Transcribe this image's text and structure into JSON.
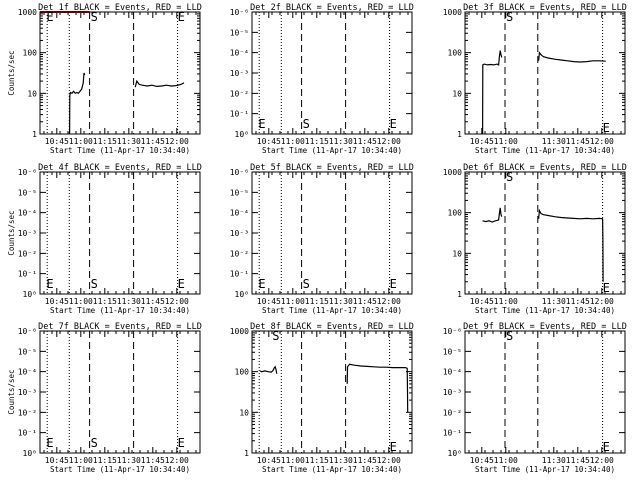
{
  "chart_data": [
    {
      "type": "line",
      "title": "Det 1f BLACK = Events, RED = LLD",
      "xlabel": "Start Time (11-Apr-17 10:34:40)",
      "ylabel": "Counts/sec",
      "x_tick_labels": [
        "10:45",
        "11:00",
        "11:15",
        "11:30",
        "11:45",
        "12:00"
      ],
      "x_ticks_min": [
        10.5,
        25.5,
        40.5,
        55.5,
        70.5,
        85.5
      ],
      "xlim_min": [
        0,
        100
      ],
      "y_tick_labels": [
        "1",
        "10",
        "100",
        "1000"
      ],
      "ylim_decades": [
        0,
        3
      ],
      "markers": [
        {
          "label": "E",
          "x": 4
        },
        {
          "label": "S",
          "x": 31
        },
        {
          "label": "E",
          "x": 86
        }
      ],
      "dotted_lines_min": [
        4.5,
        18.3,
        86
      ],
      "dashed_lines_min": [
        31,
        58.5
      ],
      "series": [
        {
          "color": "#000000",
          "points": [
            [
              18.5,
              0
            ],
            [
              18.6,
              0.95
            ],
            [
              19,
              1.02
            ],
            [
              20,
              1.0
            ],
            [
              21,
              1.05
            ],
            [
              22,
              1.0
            ],
            [
              23,
              1.02
            ],
            [
              24,
              1.0
            ],
            [
              25,
              1.05
            ],
            [
              26,
              1.1
            ],
            [
              27,
              1.25
            ],
            [
              27.5,
              1.5
            ],
            [
              28,
              1.45
            ]
          ]
        },
        {
          "color": "#000000",
          "points": [
            [
              59.5,
              1.15
            ],
            [
              60.5,
              1.3
            ],
            [
              62,
              1.22
            ],
            [
              64,
              1.2
            ],
            [
              67,
              1.18
            ],
            [
              70,
              1.2
            ],
            [
              73,
              1.17
            ],
            [
              76,
              1.18
            ],
            [
              79,
              1.2
            ],
            [
              82,
              1.18
            ],
            [
              85,
              1.19
            ],
            [
              88,
              1.22
            ],
            [
              90,
              1.26
            ]
          ]
        },
        {
          "color": "#cc0000",
          "points": [
            [
              0,
              3
            ],
            [
              4,
              3
            ],
            [
              31,
              3
            ]
          ]
        }
      ]
    },
    {
      "type": "line",
      "title": "Det 2f BLACK = Events, RED = LLD",
      "xlabel": "Start Time (11-Apr-17 10:34:40)",
      "ylabel": "",
      "x_tick_labels": [
        "10:45",
        "11:00",
        "11:15",
        "11:30",
        "11:45",
        "12:00"
      ],
      "x_ticks_min": [
        10.5,
        25.5,
        40.5,
        55.5,
        70.5,
        85.5
      ],
      "xlim_min": [
        0,
        100
      ],
      "y_tick_labels": [
        "10⁰",
        "10⁻¹",
        "10⁻²",
        "10⁻³",
        "10⁻⁴",
        "10⁻⁵",
        "10⁻⁶"
      ],
      "y_ticks_frac": [
        0,
        0.167,
        0.333,
        0.5,
        0.667,
        0.833,
        1
      ],
      "markers": [
        {
          "label": "E",
          "x": 4
        },
        {
          "label": "S",
          "x": 31
        },
        {
          "label": "E",
          "x": 86
        }
      ],
      "dotted_lines_min": [
        4.5,
        18.3,
        86
      ],
      "dashed_lines_min": [
        31,
        58.5
      ],
      "series": []
    },
    {
      "type": "line",
      "title": "Det 3f BLACK = Events, RED = LLD",
      "xlabel": "Start Time (11-Apr-17 10:34:40)",
      "ylabel": "",
      "x_tick_labels": [
        "10:45",
        "11:00",
        "11:30",
        "11:45",
        "12:00"
      ],
      "x_ticks_min": [
        10.5,
        25.5,
        55.5,
        70.5,
        85.5
      ],
      "xlim_min": [
        0,
        100
      ],
      "y_tick_labels": [
        "1",
        "10",
        "100",
        "1000"
      ],
      "ylim_decades": [
        0,
        3
      ],
      "markers": [
        {
          "label": "S",
          "x": 25
        },
        {
          "label": "E",
          "x": 86
        }
      ],
      "dotted_lines_min": [
        86
      ],
      "dashed_lines_min": [
        25,
        45.5
      ],
      "series": [
        {
          "color": "#000000",
          "points": [
            [
              11,
              0
            ],
            [
              11.1,
              1.7
            ],
            [
              12,
              1.72
            ],
            [
              14,
              1.7
            ],
            [
              16,
              1.71
            ],
            [
              18,
              1.7
            ],
            [
              20,
              1.72
            ],
            [
              21,
              1.7
            ],
            [
              21.5,
              1.9
            ],
            [
              22,
              2.05
            ],
            [
              22.5,
              1.95
            ],
            [
              23,
              1.88
            ]
          ]
        },
        {
          "color": "#000000",
          "points": [
            [
              46,
              1.8
            ],
            [
              46.5,
              2.0
            ],
            [
              47.5,
              1.95
            ],
            [
              49,
              1.9
            ],
            [
              52,
              1.87
            ],
            [
              56,
              1.84
            ],
            [
              60,
              1.82
            ],
            [
              64,
              1.8
            ],
            [
              68,
              1.78
            ],
            [
              72,
              1.77
            ],
            [
              76,
              1.78
            ],
            [
              80,
              1.8
            ],
            [
              84,
              1.8
            ],
            [
              88,
              1.79
            ]
          ]
        }
      ]
    },
    {
      "type": "line",
      "title": "Det 4f BLACK = Events, RED = LLD",
      "xlabel": "Start Time (11-Apr-17 10:34:40)",
      "ylabel": "Counts/sec",
      "x_tick_labels": [
        "10:45",
        "11:00",
        "11:15",
        "11:30",
        "11:45",
        "12:00"
      ],
      "x_ticks_min": [
        10.5,
        25.5,
        40.5,
        55.5,
        70.5,
        85.5
      ],
      "xlim_min": [
        0,
        100
      ],
      "y_tick_labels": [
        "10⁰",
        "10⁻¹",
        "10⁻²",
        "10⁻³",
        "10⁻⁴",
        "10⁻⁵",
        "10⁻⁶"
      ],
      "y_ticks_frac": [
        0,
        0.167,
        0.333,
        0.5,
        0.667,
        0.833,
        1
      ],
      "markers": [
        {
          "label": "E",
          "x": 4
        },
        {
          "label": "S",
          "x": 31
        },
        {
          "label": "E",
          "x": 86
        }
      ],
      "dotted_lines_min": [
        4.5,
        18.3,
        86
      ],
      "dashed_lines_min": [
        31,
        58.5
      ],
      "series": []
    },
    {
      "type": "line",
      "title": "Det 5f BLACK = Events, RED = LLD",
      "xlabel": "Start Time (11-Apr-17 10:34:40)",
      "ylabel": "",
      "x_tick_labels": [
        "10:45",
        "11:00",
        "11:15",
        "11:30",
        "11:45",
        "12:00"
      ],
      "x_ticks_min": [
        10.5,
        25.5,
        40.5,
        55.5,
        70.5,
        85.5
      ],
      "xlim_min": [
        0,
        100
      ],
      "y_tick_labels": [
        "10⁰",
        "10⁻¹",
        "10⁻²",
        "10⁻³",
        "10⁻⁴",
        "10⁻⁵",
        "10⁻⁶"
      ],
      "y_ticks_frac": [
        0,
        0.167,
        0.333,
        0.5,
        0.667,
        0.833,
        1
      ],
      "markers": [
        {
          "label": "E",
          "x": 4
        },
        {
          "label": "S",
          "x": 31
        },
        {
          "label": "E",
          "x": 86
        }
      ],
      "dotted_lines_min": [
        4.5,
        18.3,
        86
      ],
      "dashed_lines_min": [
        31,
        58.5
      ],
      "series": []
    },
    {
      "type": "line",
      "title": "Det 6f BLACK = Events, RED = LLD",
      "xlabel": "Start Time (11-Apr-17 10:34:40)",
      "ylabel": "",
      "x_tick_labels": [
        "10:45",
        "11:00",
        "11:30",
        "11:45",
        "12:00"
      ],
      "x_ticks_min": [
        10.5,
        25.5,
        55.5,
        70.5,
        85.5
      ],
      "xlim_min": [
        0,
        100
      ],
      "y_tick_labels": [
        "1",
        "10",
        "100",
        "1000"
      ],
      "ylim_decades": [
        0,
        3
      ],
      "markers": [
        {
          "label": "S",
          "x": 25
        },
        {
          "label": "E",
          "x": 86
        }
      ],
      "dotted_lines_min": [
        86
      ],
      "dashed_lines_min": [
        25,
        45.5
      ],
      "series": [
        {
          "color": "#000000",
          "points": [
            [
              11,
              1.8
            ],
            [
              13,
              1.78
            ],
            [
              15,
              1.8
            ],
            [
              17,
              1.77
            ],
            [
              19,
              1.8
            ],
            [
              21,
              1.82
            ],
            [
              21.5,
              1.98
            ],
            [
              22,
              2.12
            ],
            [
              22.5,
              1.95
            ],
            [
              23,
              1.9
            ]
          ]
        },
        {
          "color": "#000000",
          "points": [
            [
              46,
              1.85
            ],
            [
              46.5,
              2.05
            ],
            [
              47.5,
              1.98
            ],
            [
              49,
              1.95
            ],
            [
              52,
              1.93
            ],
            [
              56,
              1.9
            ],
            [
              60,
              1.88
            ],
            [
              64,
              1.87
            ],
            [
              68,
              1.86
            ],
            [
              72,
              1.85
            ],
            [
              76,
              1.86
            ],
            [
              80,
              1.85
            ],
            [
              84,
              1.86
            ],
            [
              86,
              1.85
            ],
            [
              86.2,
              1.3
            ],
            [
              86.3,
              0.3
            ]
          ]
        }
      ]
    },
    {
      "type": "line",
      "title": "Det 7f BLACK = Events, RED = LLD",
      "xlabel": "Start Time (11-Apr-17 10:34:40)",
      "ylabel": "Counts/sec",
      "x_tick_labels": [
        "10:45",
        "11:00",
        "11:15",
        "11:30",
        "11:45",
        "12:00"
      ],
      "x_ticks_min": [
        10.5,
        25.5,
        40.5,
        55.5,
        70.5,
        85.5
      ],
      "xlim_min": [
        0,
        100
      ],
      "y_tick_labels": [
        "10⁰",
        "10⁻¹",
        "10⁻²",
        "10⁻³",
        "10⁻⁴",
        "10⁻⁵",
        "10⁻⁶"
      ],
      "y_ticks_frac": [
        0,
        0.167,
        0.333,
        0.5,
        0.667,
        0.833,
        1
      ],
      "markers": [
        {
          "label": "E",
          "x": 4
        },
        {
          "label": "S",
          "x": 31
        },
        {
          "label": "E",
          "x": 86
        }
      ],
      "dotted_lines_min": [
        4.5,
        18.3,
        86
      ],
      "dashed_lines_min": [
        31,
        58.5
      ],
      "series": []
    },
    {
      "type": "line",
      "title": "Det 8f BLACK = Events, RED = LLD",
      "xlabel": "Start Time (11-Apr-17 10:34:40)",
      "ylabel": "",
      "x_tick_labels": [
        "10:45",
        "11:00",
        "11:15",
        "11:30",
        "11:45",
        "12:00"
      ],
      "x_ticks_min": [
        10.5,
        25.5,
        40.5,
        55.5,
        70.5,
        85.5
      ],
      "xlim_min": [
        0,
        100
      ],
      "y_tick_labels": [
        "1",
        "10",
        "100",
        "1000"
      ],
      "ylim_decades": [
        0,
        3
      ],
      "markers": [
        {
          "label": "S",
          "x": 12
        },
        {
          "label": "E",
          "x": 86
        }
      ],
      "dotted_lines_min": [
        4.5,
        18.3,
        86
      ],
      "dashed_lines_min": [
        31,
        58.5
      ],
      "series": [
        {
          "color": "#000000",
          "points": [
            [
              5,
              2.02
            ],
            [
              6,
              2.0
            ],
            [
              8,
              2.02
            ],
            [
              10,
              2.0
            ],
            [
              12,
              1.99
            ],
            [
              13,
              2.02
            ],
            [
              14,
              2.1
            ],
            [
              14.5,
              2.12
            ],
            [
              15,
              2.05
            ],
            [
              15.5,
              1.95
            ]
          ]
        },
        {
          "color": "#000000",
          "points": [
            [
              59.5,
              1.7
            ],
            [
              59.7,
              2.12
            ],
            [
              61,
              2.18
            ],
            [
              64,
              2.16
            ],
            [
              68,
              2.14
            ],
            [
              72,
              2.13
            ],
            [
              76,
              2.12
            ],
            [
              80,
              2.11
            ],
            [
              84,
              2.11
            ],
            [
              88,
              2.1
            ],
            [
              92,
              2.1
            ],
            [
              96,
              2.1
            ],
            [
              97,
              2.08
            ],
            [
              97.2,
              1.5
            ],
            [
              97.3,
              1.0
            ]
          ]
        }
      ]
    },
    {
      "type": "line",
      "title": "Det 9f BLACK = Events, RED = LLD",
      "xlabel": "Start Time (11-Apr-17 10:34:40)",
      "ylabel": "",
      "x_tick_labels": [
        "10:45",
        "11:00",
        "11:30",
        "11:45",
        "12:00"
      ],
      "x_ticks_min": [
        10.5,
        25.5,
        55.5,
        70.5,
        85.5
      ],
      "xlim_min": [
        0,
        100
      ],
      "y_tick_labels": [
        "10⁰",
        "10⁻¹",
        "10⁻²",
        "10⁻³",
        "10⁻⁴",
        "10⁻⁵",
        "10⁻⁶"
      ],
      "y_ticks_frac": [
        0,
        0.167,
        0.333,
        0.5,
        0.667,
        0.833,
        1
      ],
      "markers": [
        {
          "label": "S",
          "x": 25
        },
        {
          "label": "E",
          "x": 86
        }
      ],
      "dotted_lines_min": [
        86
      ],
      "dashed_lines_min": [
        25,
        45.5
      ],
      "series": []
    }
  ]
}
